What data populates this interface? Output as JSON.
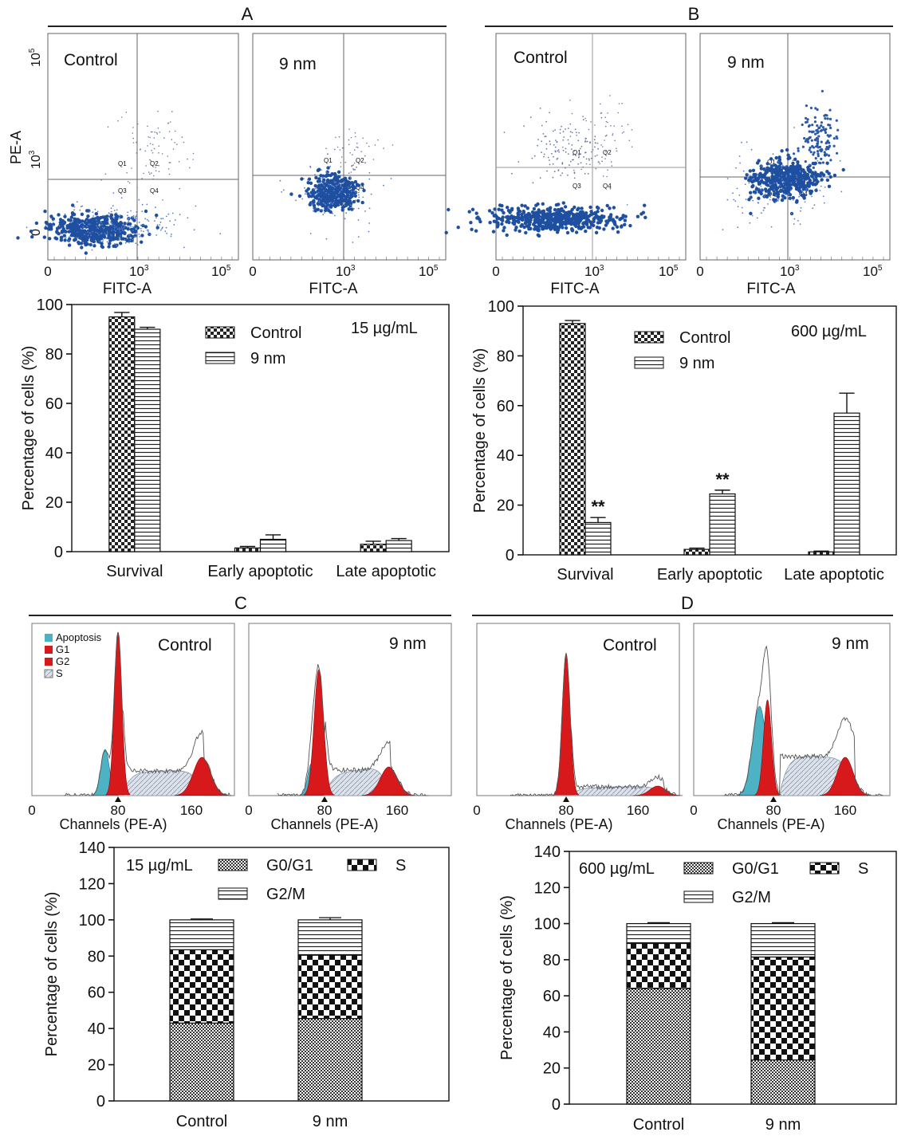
{
  "panels": {
    "A": {
      "label": "A",
      "subtitle": "15 µg/mL"
    },
    "B": {
      "label": "B",
      "subtitle": "600 µg/mL"
    },
    "C": {
      "label": "C"
    },
    "D": {
      "label": "D"
    }
  },
  "flow": {
    "ylabel": "PE-A",
    "xlabel": "FITC-A",
    "ytick_top": "10",
    "ytick_top_exp": "5",
    "ytick_mid": "10",
    "ytick_mid_exp": "3",
    "ytick_zero": "0",
    "xtick_zero": "0",
    "xtick_mid": "10",
    "xtick_mid_exp": "3",
    "xtick_end": "10",
    "xtick_end_exp": "5",
    "quadrants": [
      "Q1",
      "Q2",
      "Q3",
      "Q4"
    ],
    "plots": [
      {
        "title": "Control"
      },
      {
        "title": "9 nm"
      },
      {
        "title": "Control"
      },
      {
        "title": "9 nm"
      }
    ]
  },
  "histograms": {
    "xlabel": "Channels (PE-A)",
    "ticks": [
      "0",
      "80",
      "160"
    ],
    "legend": [
      "Apoptosis",
      "G1",
      "G2",
      "S"
    ],
    "colors": {
      "apoptosis": "#4db3c4",
      "g1": "#d7191c",
      "g2": "#d7191c",
      "s": "#d9dfe8"
    },
    "plots": [
      {
        "title": "Control"
      },
      {
        "title": "9 nm"
      },
      {
        "title": "Control"
      },
      {
        "title": "9 nm"
      }
    ]
  },
  "chart_data": [
    {
      "type": "bar",
      "panel": "A",
      "title": "15 µg/mL",
      "ylabel": "Percentage of cells (%)",
      "ylim": [
        0,
        100
      ],
      "yticks": [
        "0",
        "20",
        "40",
        "60",
        "80",
        "100"
      ],
      "categories": [
        "Survival",
        "Early apoptotic",
        "Late apoptotic"
      ],
      "series": [
        {
          "name": "Control",
          "values": [
            95,
            1.5,
            3
          ],
          "errors": [
            1.8,
            0.6,
            1.2
          ]
        },
        {
          "name": "9 nm",
          "values": [
            90,
            5,
            4.5
          ],
          "errors": [
            0.8,
            1.8,
            0.8
          ]
        }
      ],
      "annotations": []
    },
    {
      "type": "bar",
      "panel": "B",
      "title": "600 µg/mL",
      "ylabel": "Percentage of cells (%)",
      "ylim": [
        0,
        100
      ],
      "yticks": [
        "0",
        "20",
        "40",
        "60",
        "80",
        "100"
      ],
      "categories": [
        "Survival",
        "Early apoptotic",
        "Late apoptotic"
      ],
      "series": [
        {
          "name": "Control",
          "values": [
            93,
            2.2,
            1.2
          ],
          "errors": [
            1.2,
            0.5,
            0.3
          ]
        },
        {
          "name": "9 nm",
          "values": [
            13,
            24.5,
            57
          ],
          "errors": [
            2,
            1.5,
            8
          ]
        }
      ],
      "annotations": [
        "**",
        "**"
      ]
    },
    {
      "type": "bar",
      "stacked": true,
      "panel": "C",
      "title": "15 µg/mL",
      "ylabel": "Percentage of cells (%)",
      "ylim": [
        0,
        140
      ],
      "yticks": [
        "0",
        "20",
        "40",
        "60",
        "80",
        "100",
        "120",
        "140"
      ],
      "categories": [
        "Control",
        "9 nm"
      ],
      "series": [
        {
          "name": "G0/G1",
          "values": [
            43,
            45.5
          ],
          "errors": [
            0.8,
            1
          ]
        },
        {
          "name": "S",
          "values": [
            40.5,
            35
          ],
          "errors": [
            0.8,
            1
          ]
        },
        {
          "name": "G2/M",
          "values": [
            16.5,
            19.5
          ],
          "errors": [
            0.5,
            1.2
          ]
        }
      ]
    },
    {
      "type": "bar",
      "stacked": true,
      "panel": "D",
      "title": "600 µg/mL",
      "ylabel": "Percentage of cells (%)",
      "ylim": [
        0,
        140
      ],
      "yticks": [
        "0",
        "20",
        "40",
        "60",
        "80",
        "100",
        "120",
        "140"
      ],
      "categories": [
        "Control",
        "9 nm"
      ],
      "series": [
        {
          "name": "G0/G1",
          "values": [
            64,
            24.5
          ],
          "errors": [
            0.8,
            0.8
          ]
        },
        {
          "name": "S",
          "values": [
            25,
            57
          ],
          "errors": [
            0.8,
            0.8
          ]
        },
        {
          "name": "G2/M",
          "values": [
            11,
            18.5
          ],
          "errors": [
            0.5,
            0.5
          ]
        }
      ]
    }
  ]
}
